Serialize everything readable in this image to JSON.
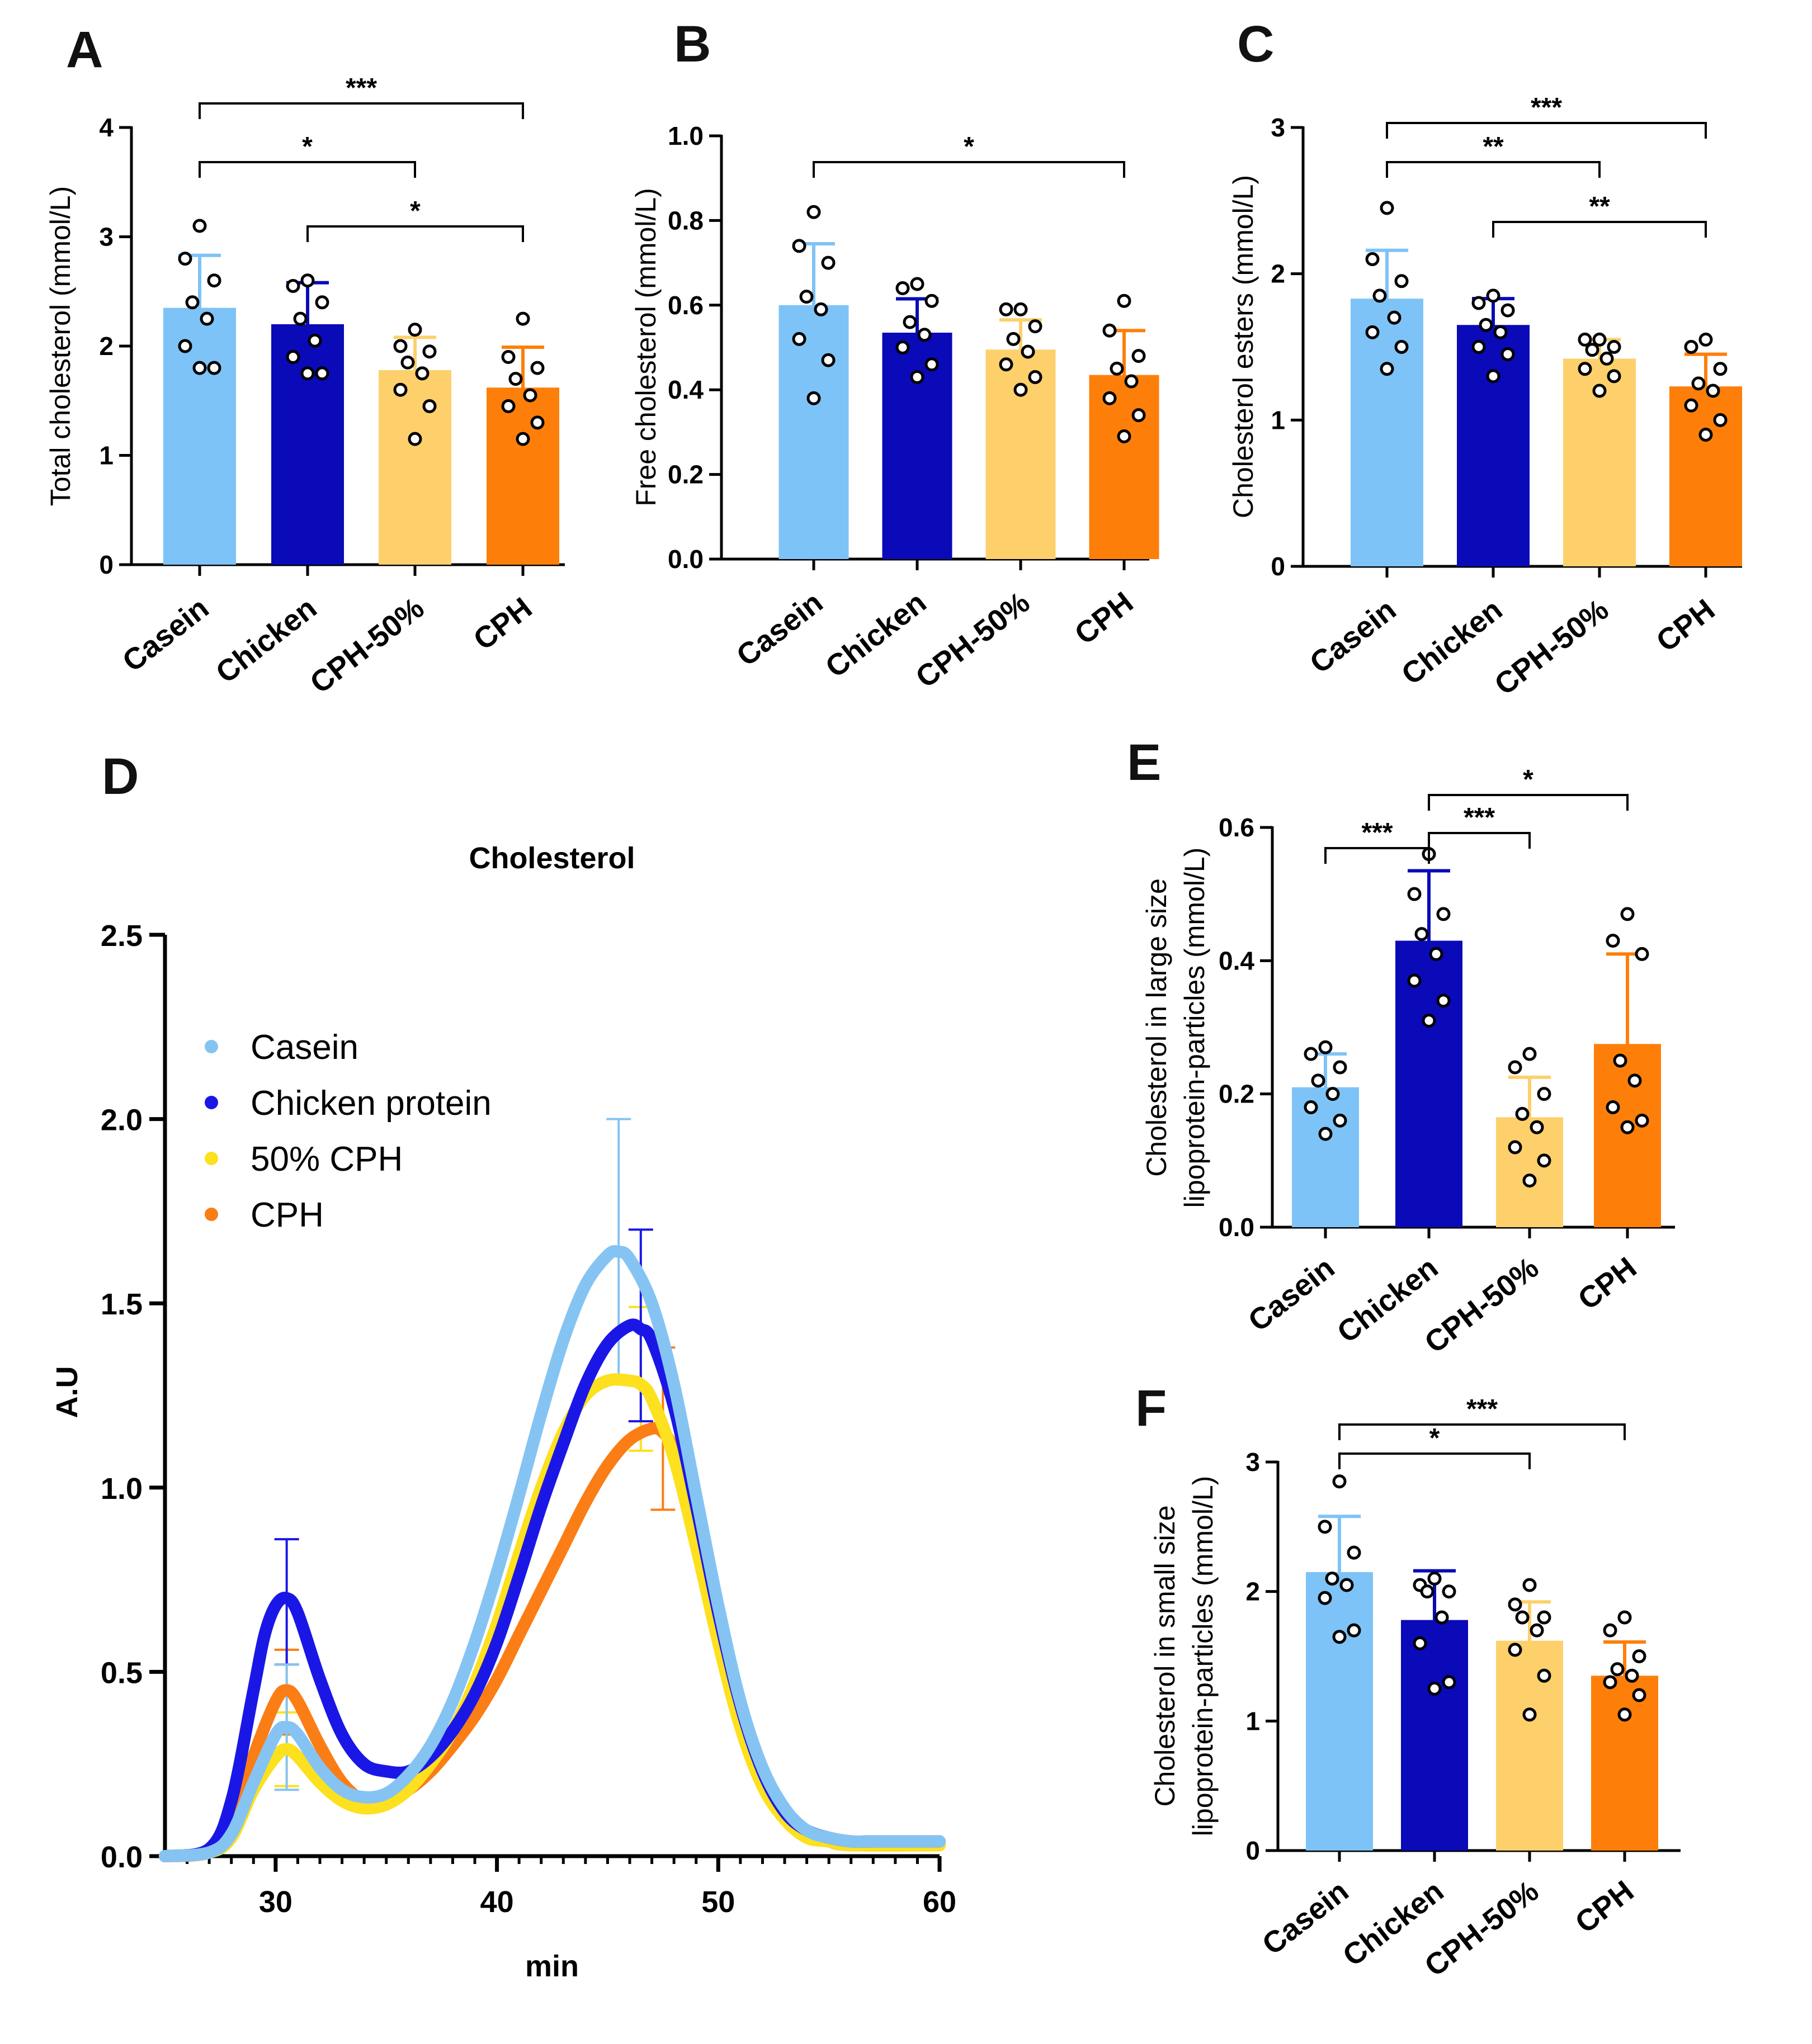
{
  "figure": {
    "panel_letters": [
      "A",
      "B",
      "C",
      "D",
      "E",
      "F"
    ]
  },
  "chart_data": [
    {
      "panel": "A",
      "type": "bar",
      "categories": [
        "Casein",
        "Chicken",
        "CPH-50%",
        "CPH"
      ],
      "values": [
        2.35,
        2.2,
        1.78,
        1.62
      ],
      "errors": [
        0.48,
        0.38,
        0.3,
        0.37
      ],
      "colors": [
        "#7ec3f7",
        "#0a0ab8",
        "#fdd06b",
        "#fd7f0a"
      ],
      "points": [
        [
          3.1,
          2.8,
          2.6,
          2.4,
          2.25,
          2.0,
          1.8,
          1.8
        ],
        [
          2.6,
          2.55,
          2.4,
          2.25,
          2.05,
          1.9,
          1.75,
          1.75
        ],
        [
          2.15,
          2.0,
          1.95,
          1.85,
          1.75,
          1.6,
          1.45,
          1.15
        ],
        [
          2.25,
          1.9,
          1.8,
          1.7,
          1.55,
          1.45,
          1.3,
          1.15
        ]
      ],
      "ylabel": "Total cholesterol (mmol/L)",
      "ylim": [
        0,
        4
      ],
      "yticks": [
        "0",
        "1",
        "2",
        "3",
        "4"
      ],
      "yticks_values": [
        0,
        1,
        2,
        3,
        4
      ],
      "significance": [
        {
          "from": 0,
          "to": 3,
          "label": "***"
        },
        {
          "from": 0,
          "to": 2,
          "label": "*"
        },
        {
          "from": 1,
          "to": 3,
          "label": "*"
        }
      ]
    },
    {
      "panel": "B",
      "type": "bar",
      "categories": [
        "Casein",
        "Chicken",
        "CPH-50%",
        "CPH"
      ],
      "values": [
        0.6,
        0.535,
        0.495,
        0.435
      ],
      "errors": [
        0.145,
        0.08,
        0.07,
        0.105
      ],
      "colors": [
        "#7ec3f7",
        "#0a0ab8",
        "#fdd06b",
        "#fd7f0a"
      ],
      "points": [
        [
          0.82,
          0.74,
          0.7,
          0.62,
          0.59,
          0.52,
          0.47,
          0.38
        ],
        [
          0.65,
          0.64,
          0.61,
          0.56,
          0.53,
          0.5,
          0.46,
          0.43
        ],
        [
          0.59,
          0.59,
          0.55,
          0.52,
          0.49,
          0.46,
          0.43,
          0.4
        ],
        [
          0.61,
          0.54,
          0.48,
          0.45,
          0.42,
          0.38,
          0.34,
          0.29
        ]
      ],
      "ylabel": "Free cholesterol (mmol/L)",
      "ylim": [
        0,
        1.0
      ],
      "yticks": [
        "0.0",
        "0.2",
        "0.4",
        "0.6",
        "0.8",
        "1.0"
      ],
      "yticks_values": [
        0,
        0.2,
        0.4,
        0.6,
        0.8,
        1.0
      ],
      "significance": [
        {
          "from": 0,
          "to": 3,
          "label": "*"
        }
      ]
    },
    {
      "panel": "C",
      "type": "bar",
      "categories": [
        "Casein",
        "Chicken",
        "CPH-50%",
        "CPH"
      ],
      "values": [
        1.83,
        1.65,
        1.42,
        1.23
      ],
      "errors": [
        0.33,
        0.18,
        0.13,
        0.22
      ],
      "colors": [
        "#7ec3f7",
        "#0a0ab8",
        "#fdd06b",
        "#fd7f0a"
      ],
      "points": [
        [
          2.45,
          2.1,
          1.95,
          1.85,
          1.7,
          1.6,
          1.5,
          1.35
        ],
        [
          1.85,
          1.8,
          1.75,
          1.65,
          1.6,
          1.5,
          1.45,
          1.3
        ],
        [
          1.55,
          1.55,
          1.5,
          1.48,
          1.42,
          1.35,
          1.3,
          1.2
        ],
        [
          1.55,
          1.5,
          1.35,
          1.25,
          1.2,
          1.1,
          1.0,
          0.9
        ]
      ],
      "ylabel": "Cholesterol esters (mmol/L)",
      "ylim": [
        0,
        3
      ],
      "yticks": [
        "0",
        "1",
        "2",
        "3"
      ],
      "yticks_values": [
        0,
        1,
        2,
        3
      ],
      "significance": [
        {
          "from": 0,
          "to": 3,
          "label": "***"
        },
        {
          "from": 0,
          "to": 2,
          "label": "**"
        },
        {
          "from": 1,
          "to": 3,
          "label": "**"
        }
      ]
    },
    {
      "panel": "D",
      "type": "line",
      "title": "Cholesterol",
      "xlabel": "min",
      "ylabel": "A.U",
      "xlim": [
        25,
        60
      ],
      "ylim": [
        0,
        2.5
      ],
      "xticks": [
        "30",
        "40",
        "50",
        "60"
      ],
      "xticks_values": [
        30,
        40,
        50,
        60
      ],
      "yticks": [
        "0.0",
        "0.5",
        "1.0",
        "1.5",
        "2.0",
        "2.5"
      ],
      "yticks_values": [
        0,
        0.5,
        1.0,
        1.5,
        2.0,
        2.5
      ],
      "legend": [
        "Casein",
        "Chicken protein",
        "50% CPH",
        "CPH"
      ],
      "series": [
        {
          "name": "Casein",
          "color": "#85c4f2",
          "x": [
            25,
            27,
            28,
            29,
            30,
            30.5,
            31,
            32,
            33,
            34,
            35,
            36,
            37,
            38,
            39,
            40,
            41,
            42,
            43,
            44,
            45,
            45.5,
            46,
            47,
            48,
            49,
            50,
            51,
            52,
            53,
            54,
            55,
            56,
            57,
            60
          ],
          "y": [
            0,
            0.01,
            0.06,
            0.2,
            0.33,
            0.35,
            0.33,
            0.24,
            0.18,
            0.16,
            0.17,
            0.22,
            0.3,
            0.42,
            0.58,
            0.77,
            0.98,
            1.2,
            1.4,
            1.55,
            1.63,
            1.64,
            1.62,
            1.5,
            1.28,
            0.98,
            0.68,
            0.42,
            0.24,
            0.13,
            0.07,
            0.05,
            0.04,
            0.04,
            0.04
          ],
          "err": [
            {
              "x": 30.5,
              "lo": 0.18,
              "hi": 0.52
            },
            {
              "x": 45.5,
              "lo": 1.28,
              "hi": 2.0
            }
          ]
        },
        {
          "name": "Chicken protein",
          "color": "#1a17e6",
          "x": [
            25,
            27,
            28,
            29,
            29.5,
            30,
            30.5,
            31,
            32,
            33,
            34,
            35,
            36,
            37,
            38,
            39,
            40,
            41,
            42,
            43,
            44,
            45,
            46,
            46.5,
            47,
            48,
            49,
            50,
            51,
            52,
            53,
            54,
            55,
            56,
            57,
            60
          ],
          "y": [
            0,
            0.02,
            0.15,
            0.45,
            0.6,
            0.68,
            0.7,
            0.66,
            0.48,
            0.33,
            0.25,
            0.23,
            0.23,
            0.27,
            0.34,
            0.44,
            0.58,
            0.76,
            0.95,
            1.12,
            1.28,
            1.39,
            1.44,
            1.43,
            1.4,
            1.22,
            0.95,
            0.66,
            0.41,
            0.23,
            0.12,
            0.07,
            0.05,
            0.04,
            0.04,
            0.04
          ],
          "err": [
            {
              "x": 30.5,
              "lo": 0.52,
              "hi": 0.86
            },
            {
              "x": 46.5,
              "lo": 1.18,
              "hi": 1.7
            }
          ]
        },
        {
          "name": "50% CPH",
          "color": "#fde01e",
          "x": [
            25,
            27,
            28,
            29,
            30,
            30.5,
            31,
            32,
            33,
            34,
            35,
            36,
            37,
            38,
            39,
            40,
            41,
            42,
            43,
            44,
            45,
            46,
            46.5,
            47,
            48,
            49,
            50,
            51,
            52,
            53,
            54,
            55,
            56,
            60
          ],
          "y": [
            0,
            0.01,
            0.05,
            0.18,
            0.27,
            0.29,
            0.27,
            0.2,
            0.15,
            0.13,
            0.14,
            0.18,
            0.25,
            0.34,
            0.47,
            0.63,
            0.82,
            1.0,
            1.15,
            1.25,
            1.29,
            1.29,
            1.28,
            1.24,
            1.08,
            0.84,
            0.58,
            0.35,
            0.19,
            0.1,
            0.05,
            0.04,
            0.03,
            0.03
          ],
          "err": [
            {
              "x": 30.5,
              "lo": 0.19,
              "hi": 0.39
            },
            {
              "x": 46.5,
              "lo": 1.1,
              "hi": 1.49
            }
          ]
        },
        {
          "name": "CPH",
          "color": "#fb7d16",
          "x": [
            25,
            27,
            28,
            29,
            30,
            30.5,
            31,
            32,
            33,
            34,
            35,
            36,
            37,
            38,
            39,
            40,
            41,
            42,
            43,
            44,
            45,
            46,
            47,
            47.5,
            48,
            49,
            50,
            51,
            52,
            53,
            54,
            55,
            56,
            60
          ],
          "y": [
            0,
            0.01,
            0.07,
            0.27,
            0.42,
            0.45,
            0.42,
            0.3,
            0.2,
            0.15,
            0.15,
            0.18,
            0.23,
            0.3,
            0.38,
            0.48,
            0.6,
            0.72,
            0.84,
            0.96,
            1.06,
            1.13,
            1.16,
            1.15,
            1.1,
            0.92,
            0.66,
            0.41,
            0.22,
            0.11,
            0.06,
            0.04,
            0.03,
            0.03
          ],
          "err": [
            {
              "x": 30.5,
              "lo": 0.33,
              "hi": 0.56
            },
            {
              "x": 47.5,
              "lo": 0.94,
              "hi": 1.38
            }
          ]
        }
      ]
    },
    {
      "panel": "E",
      "type": "bar",
      "categories": [
        "Casein",
        "Chicken",
        "CPH-50%",
        "CPH"
      ],
      "values": [
        0.21,
        0.43,
        0.165,
        0.275
      ],
      "errors": [
        0.05,
        0.105,
        0.06,
        0.135
      ],
      "colors": [
        "#7ec3f7",
        "#0a0ab8",
        "#fdd06b",
        "#fd7f0a"
      ],
      "points": [
        [
          0.27,
          0.26,
          0.24,
          0.22,
          0.2,
          0.18,
          0.16,
          0.14
        ],
        [
          0.56,
          0.5,
          0.47,
          0.44,
          0.41,
          0.37,
          0.34,
          0.31
        ],
        [
          0.26,
          0.24,
          0.2,
          0.17,
          0.15,
          0.12,
          0.1,
          0.07
        ],
        [
          0.47,
          0.43,
          0.41,
          0.25,
          0.22,
          0.18,
          0.16,
          0.15
        ]
      ],
      "ylabel": "Cholesterol in large size lipoprotein-particles (mmol/L)",
      "ylabel_lines": [
        "Cholesterol in large size",
        "lipoprotein-particles (mmol/L)"
      ],
      "ylim": [
        0,
        0.6
      ],
      "yticks": [
        "0.0",
        "0.2",
        "0.4",
        "0.6"
      ],
      "yticks_values": [
        0,
        0.2,
        0.4,
        0.6
      ],
      "significance": [
        {
          "from": 1,
          "to": 3,
          "label": "*"
        },
        {
          "from": 0,
          "to": 1,
          "label": "***"
        },
        {
          "from": 1,
          "to": 2,
          "label": "***"
        }
      ]
    },
    {
      "panel": "F",
      "type": "bar",
      "categories": [
        "Casein",
        "Chicken",
        "CPH-50%",
        "CPH"
      ],
      "values": [
        2.15,
        1.78,
        1.62,
        1.35
      ],
      "errors": [
        0.43,
        0.38,
        0.3,
        0.26
      ],
      "colors": [
        "#7ec3f7",
        "#0a0ab8",
        "#fdd06b",
        "#fd7f0a"
      ],
      "points": [
        [
          2.85,
          2.5,
          2.3,
          2.1,
          2.05,
          1.95,
          1.7,
          1.65
        ],
        [
          2.1,
          2.05,
          2.0,
          2.0,
          1.8,
          1.6,
          1.3,
          1.25
        ],
        [
          2.05,
          1.9,
          1.8,
          1.8,
          1.7,
          1.55,
          1.35,
          1.05
        ],
        [
          1.8,
          1.7,
          1.5,
          1.4,
          1.35,
          1.3,
          1.2,
          1.05
        ]
      ],
      "ylabel": "Cholesterol in small size lipoprotein-particles (mmol/L)",
      "ylabel_lines": [
        "Cholesterol in small size",
        "lipoprotein-particles (mmol/L)"
      ],
      "ylim": [
        0,
        3
      ],
      "yticks": [
        "0",
        "1",
        "2",
        "3"
      ],
      "yticks_values": [
        0,
        1,
        2,
        3
      ],
      "significance": [
        {
          "from": 0,
          "to": 3,
          "label": "***"
        },
        {
          "from": 0,
          "to": 2,
          "label": "*"
        }
      ]
    }
  ]
}
